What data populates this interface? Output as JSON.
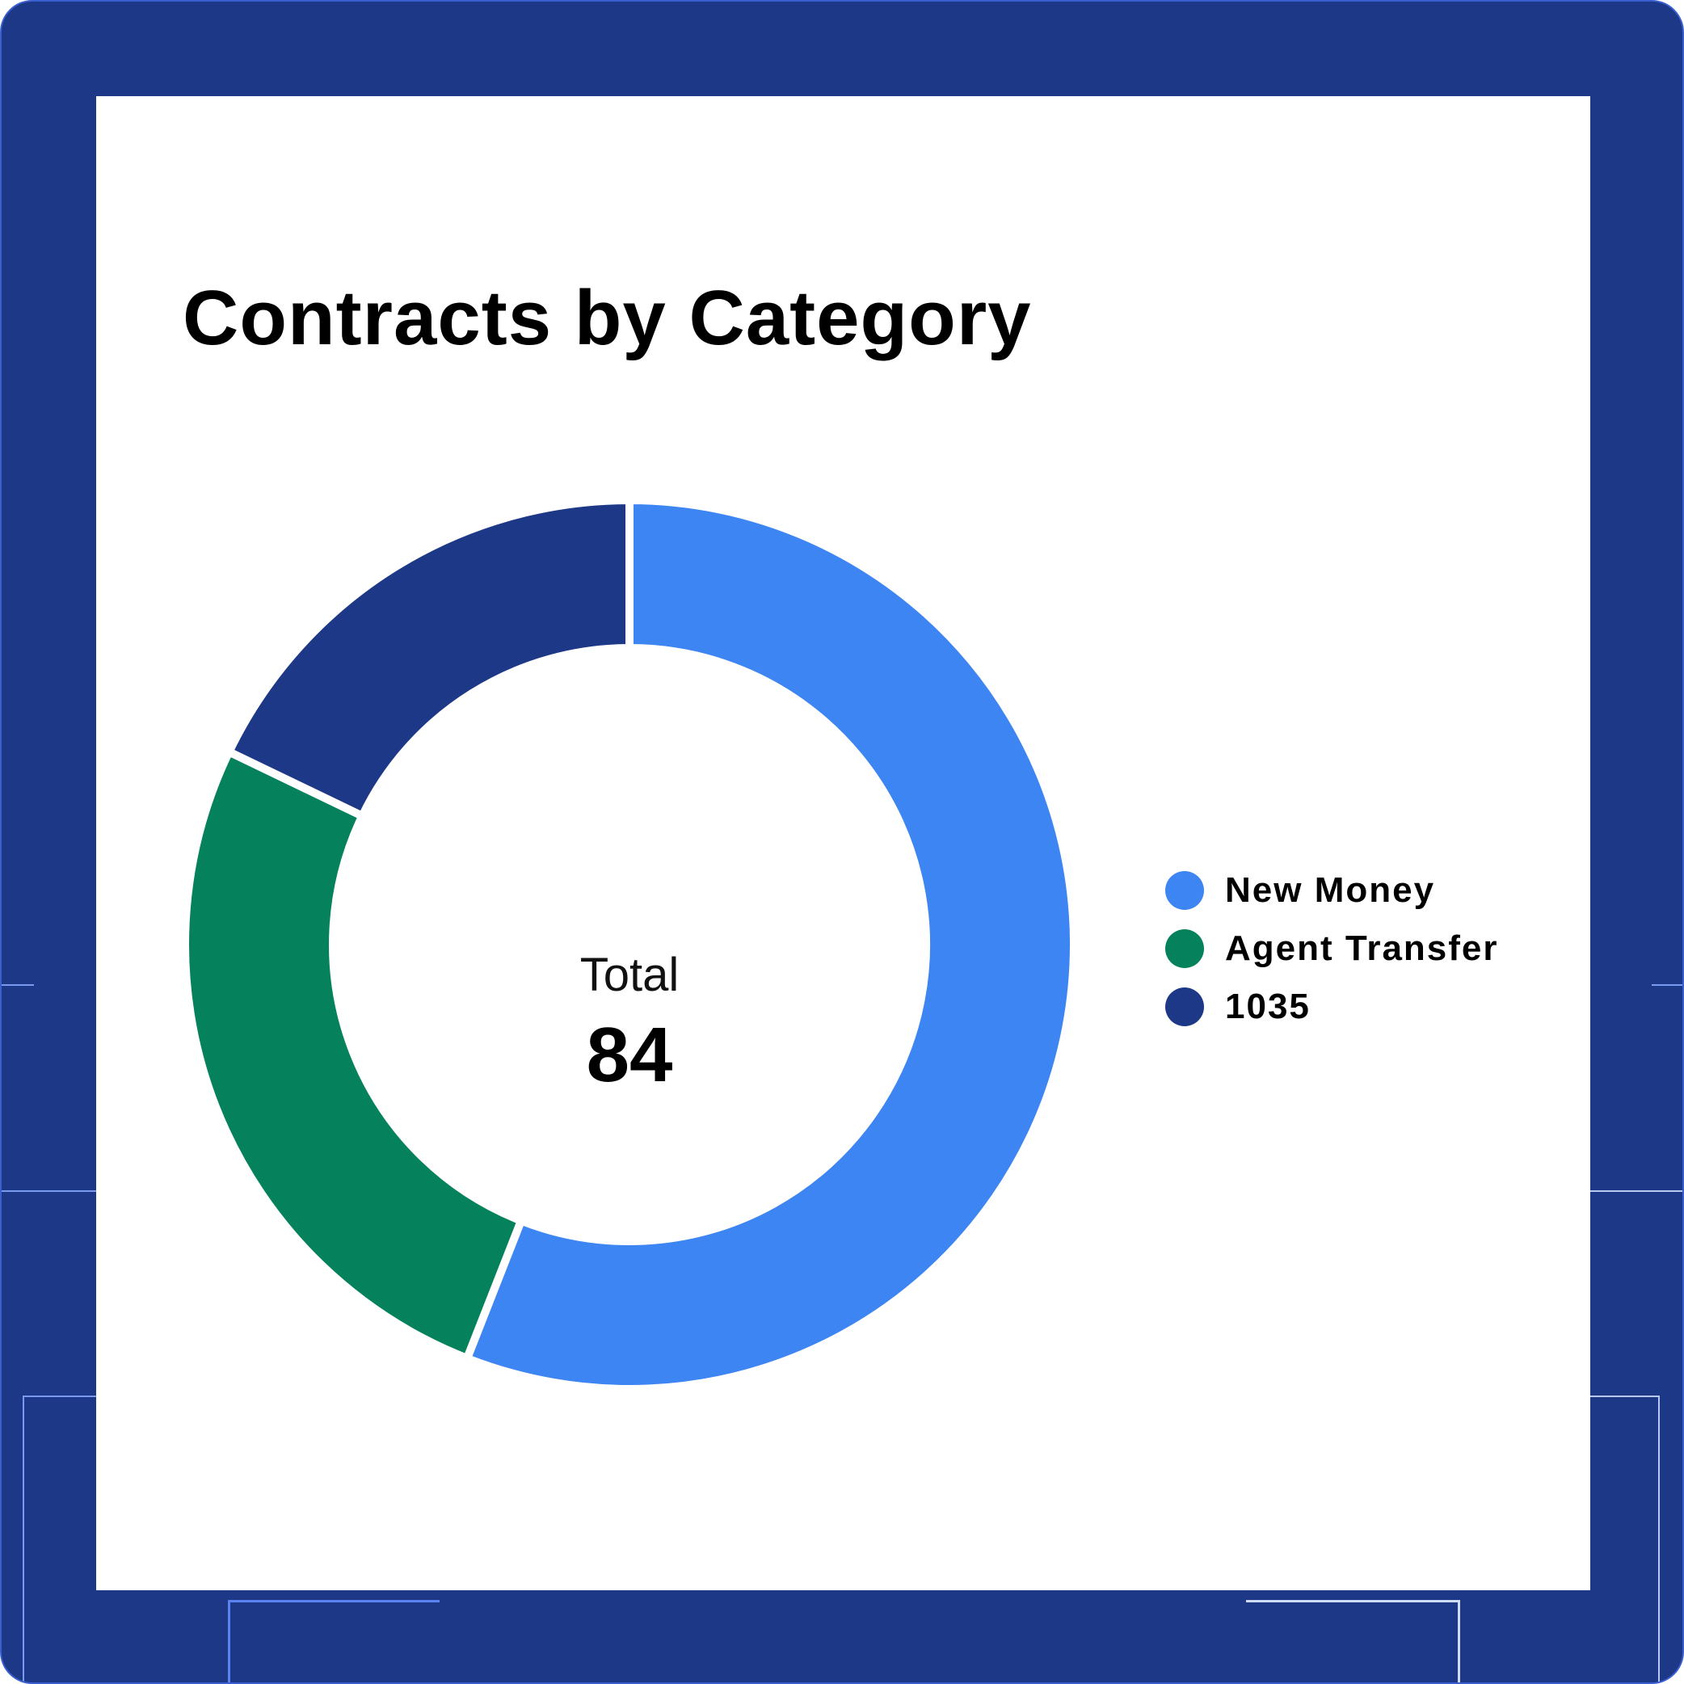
{
  "chart_data": {
    "type": "pie",
    "title": "Contracts by Category",
    "center_label": "Total",
    "center_value": "84",
    "categories": [
      "New Money",
      "Agent Transfer",
      "1035"
    ],
    "values": [
      47,
      22,
      15
    ],
    "colors": [
      "#3d85f3",
      "#05825b",
      "#1e3888"
    ],
    "legend_position": "right",
    "donut": true
  },
  "frame": {
    "background": "#1e3888",
    "card_background": "#ffffff"
  }
}
